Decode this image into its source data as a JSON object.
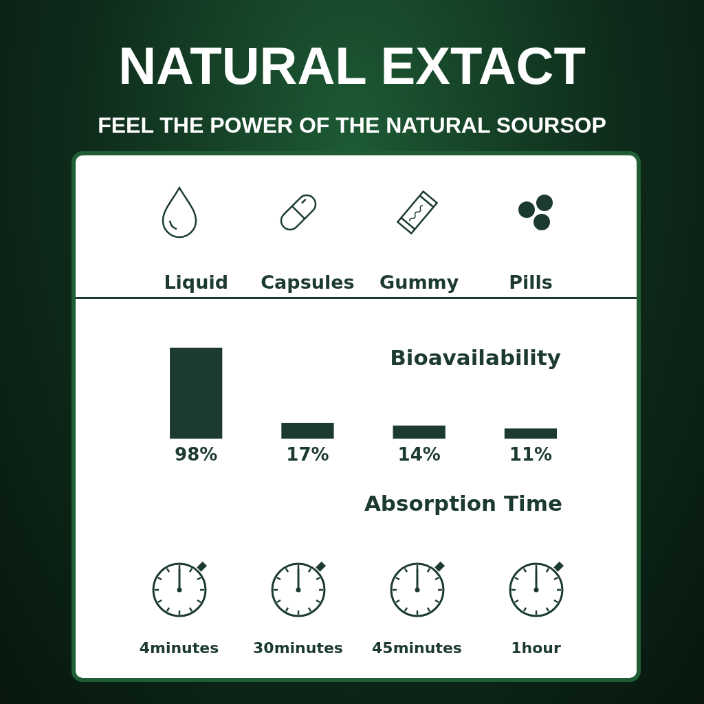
{
  "chart_data": [
    {
      "type": "bar",
      "title": "NATURAL EXTACT",
      "subtitle": "FEEL THE POWER OF THE NATURAL SOURSOP",
      "categories": [
        "Liquid",
        "Capsules",
        "Gummy",
        "Pills"
      ],
      "values": [
        98,
        17,
        14,
        11
      ],
      "value_labels": [
        "98%",
        "17%",
        "14%",
        "11%"
      ],
      "color": "#1c3a30",
      "annotations": [
        "Bioavailability"
      ],
      "tick_labels": "x"
    },
    {
      "type": "other",
      "title": "Absorption Time",
      "categories": [
        "4minutes",
        "30minutes",
        "45minutes",
        "1hour"
      ]
    }
  ]
}
